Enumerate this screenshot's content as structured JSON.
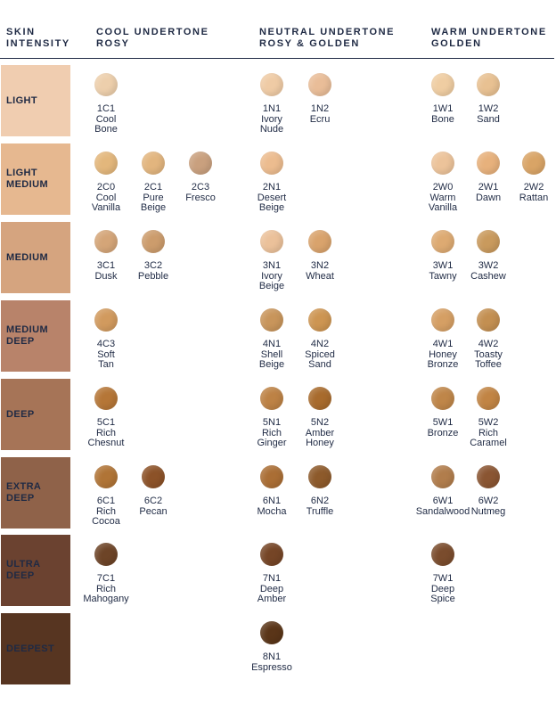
{
  "headers": {
    "intensity": [
      "SKIN",
      "INTENSITY"
    ],
    "cool": [
      "COOL UNDERTONE",
      "ROSY"
    ],
    "neutral": [
      "NEUTRAL UNDERTONE",
      "ROSY & GOLDEN"
    ],
    "warm": [
      "WARM UNDERTONE",
      "GOLDEN"
    ]
  },
  "rows": [
    {
      "label": [
        "LIGHT"
      ],
      "color": "#f0cdb0",
      "cool": [
        {
          "code": "1C1",
          "name": [
            "Cool",
            "Bone"
          ],
          "color": "#edcfac"
        }
      ],
      "neutral": [
        {
          "code": "1N1",
          "name": [
            "Ivory",
            "Nude"
          ],
          "color": "#efcba5"
        },
        {
          "code": "1N2",
          "name": [
            "Ecru"
          ],
          "color": "#e9bd98"
        }
      ],
      "warm": [
        {
          "code": "1W1",
          "name": [
            "Bone"
          ],
          "color": "#efcda2"
        },
        {
          "code": "1W2",
          "name": [
            "Sand"
          ],
          "color": "#e8c192"
        }
      ]
    },
    {
      "label": [
        "LIGHT",
        "MEDIUM"
      ],
      "color": "#e6b890",
      "cool": [
        {
          "code": "2C0",
          "name": [
            "Cool",
            "Vanilla"
          ],
          "color": "#e3b77c"
        },
        {
          "code": "2C1",
          "name": [
            "Pure",
            "Beige"
          ],
          "color": "#e2b57e"
        },
        {
          "code": "2C3",
          "name": [
            "Fresco"
          ],
          "color": "#c9a07e"
        }
      ],
      "neutral": [
        {
          "code": "2N1",
          "name": [
            "Desert",
            "Beige"
          ],
          "color": "#ecbc8f"
        }
      ],
      "warm": [
        {
          "code": "2W0",
          "name": [
            "Warm",
            "Vanilla"
          ],
          "color": "#ecc39a"
        },
        {
          "code": "2W1",
          "name": [
            "Dawn"
          ],
          "color": "#e7b17c"
        },
        {
          "code": "2W2",
          "name": [
            "Rattan"
          ],
          "color": "#d9a466"
        }
      ]
    },
    {
      "label": [
        "MEDIUM"
      ],
      "color": "#d5a47f",
      "cool": [
        {
          "code": "3C1",
          "name": [
            "Dusk"
          ],
          "color": "#d4a578"
        },
        {
          "code": "3C2",
          "name": [
            "Pebble"
          ],
          "color": "#cc9c6c"
        }
      ],
      "neutral": [
        {
          "code": "3N1",
          "name": [
            "Ivory",
            "Beige"
          ],
          "color": "#ebc19a"
        },
        {
          "code": "3N2",
          "name": [
            "Wheat"
          ],
          "color": "#d9a36c"
        }
      ],
      "warm": [
        {
          "code": "3W1",
          "name": [
            "Tawny"
          ],
          "color": "#ddaa72"
        },
        {
          "code": "3W2",
          "name": [
            "Cashew"
          ],
          "color": "#c99a5d"
        }
      ]
    },
    {
      "label": [
        "MEDIUM",
        "DEEP"
      ],
      "color": "#b8836a",
      "cool": [
        {
          "code": "4C3",
          "name": [
            "Soft",
            "Tan"
          ],
          "color": "#d19a5e"
        }
      ],
      "neutral": [
        {
          "code": "4N1",
          "name": [
            "Shell",
            "Beige"
          ],
          "color": "#c8955b"
        },
        {
          "code": "4N2",
          "name": [
            "Spiced",
            "Sand"
          ],
          "color": "#cd9552"
        }
      ],
      "warm": [
        {
          "code": "4W1",
          "name": [
            "Honey",
            "Bronze"
          ],
          "color": "#d59f64"
        },
        {
          "code": "4W2",
          "name": [
            "Toasty",
            "Toffee"
          ],
          "color": "#c38f51"
        }
      ]
    },
    {
      "label": [
        "DEEP"
      ],
      "color": "#a67457",
      "cool": [
        {
          "code": "5C1",
          "name": [
            "Rich",
            "Chesnut"
          ],
          "color": "#b57637"
        }
      ],
      "neutral": [
        {
          "code": "5N1",
          "name": [
            "Rich",
            "Ginger"
          ],
          "color": "#bd8245"
        },
        {
          "code": "5N2",
          "name": [
            "Amber",
            "Honey"
          ],
          "color": "#a86b2d"
        }
      ],
      "warm": [
        {
          "code": "5W1",
          "name": [
            "Bronze"
          ],
          "color": "#bf8649"
        },
        {
          "code": "5W2",
          "name": [
            "Rich",
            "Caramel"
          ],
          "color": "#c18444"
        }
      ]
    },
    {
      "label": [
        "EXTRA",
        "DEEP"
      ],
      "color": "#8f6249",
      "cool": [
        {
          "code": "6C1",
          "name": [
            "Rich",
            "Cocoa"
          ],
          "color": "#b07436"
        },
        {
          "code": "6C2",
          "name": [
            "Pecan"
          ],
          "color": "#8c5228"
        }
      ],
      "neutral": [
        {
          "code": "6N1",
          "name": [
            "Mocha"
          ],
          "color": "#aa6e35"
        },
        {
          "code": "6N2",
          "name": [
            "Truffle"
          ],
          "color": "#8d5a2b"
        }
      ],
      "warm": [
        {
          "code": "6W1",
          "name": [
            "Sandalwood"
          ],
          "color": "#b17d4c"
        },
        {
          "code": "6W2",
          "name": [
            "Nutmeg"
          ],
          "color": "#8a5532"
        }
      ]
    },
    {
      "label": [
        "ULTRA",
        "DEEP"
      ],
      "color": "#6b4230",
      "cool": [
        {
          "code": "7C1",
          "name": [
            "Rich",
            "Mahogany"
          ],
          "color": "#6d4427"
        }
      ],
      "neutral": [
        {
          "code": "7N1",
          "name": [
            "Deep",
            "Amber"
          ],
          "color": "#754526"
        }
      ],
      "warm": [
        {
          "code": "7W1",
          "name": [
            "Deep",
            "Spice"
          ],
          "color": "#7a4c2d"
        }
      ]
    },
    {
      "label": [
        "DEEPEST"
      ],
      "color": "#573521",
      "cool": [],
      "neutral": [
        {
          "code": "8N1",
          "name": [
            "Espresso"
          ],
          "color": "#5a3518"
        }
      ],
      "warm": []
    }
  ]
}
